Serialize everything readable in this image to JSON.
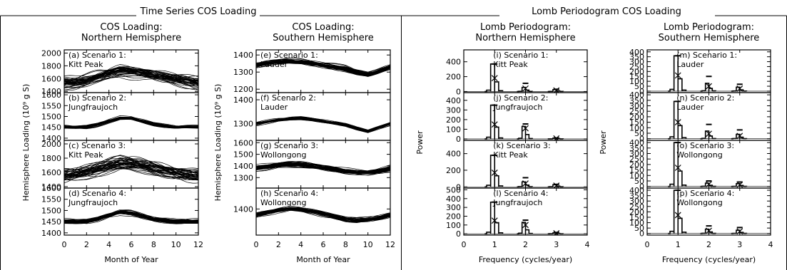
{
  "figure": {
    "left_title": "Time Series COS Loading",
    "right_title": "Lomb Periodogram COS Loading"
  },
  "chart_data": [
    {
      "type": "line",
      "column_title": [
        "COS Loading:",
        "Northern Hemisphere"
      ],
      "xlabel": "Month of Year",
      "ylabel": "Hemisphere Loading (10⁹ g S)",
      "xlim": [
        0,
        12
      ],
      "xticks": [
        "0",
        "2",
        "4",
        "6",
        "8",
        "10",
        "12"
      ],
      "panels": [
        {
          "label": [
            "(a) Scenario 1:",
            "Kitt Peak"
          ],
          "ylim": [
            1380,
            2050
          ],
          "yticks": [
            1400,
            1600,
            1800,
            2000
          ],
          "mean": [
            1520,
            1530,
            1560,
            1620,
            1670,
            1715,
            1700,
            1680,
            1640,
            1610,
            1575,
            1545,
            1520
          ],
          "spread": 90,
          "n_curves": 40
        },
        {
          "label": [
            "(b) Scenario 2:",
            "Jungfraujoch"
          ],
          "ylim": [
            1390,
            1610
          ],
          "yticks": [
            1400,
            1450,
            1500,
            1550,
            1600
          ],
          "mean": [
            1452,
            1450,
            1452,
            1462,
            1478,
            1492,
            1490,
            1476,
            1462,
            1455,
            1450,
            1452,
            1452
          ],
          "spread": 8,
          "n_curves": 40
        },
        {
          "label": [
            "(c) Scenario 3:",
            "Kitt Peak"
          ],
          "ylim": [
            1380,
            2050
          ],
          "yticks": [
            1400,
            1600,
            1800,
            2000
          ],
          "mean": [
            1540,
            1555,
            1590,
            1640,
            1690,
            1725,
            1710,
            1680,
            1650,
            1620,
            1590,
            1560,
            1540
          ],
          "spread": 95,
          "n_curves": 40
        },
        {
          "label": [
            "(d) Scenario 4:",
            "Jungfraujoch"
          ],
          "ylim": [
            1390,
            1600
          ],
          "yticks": [
            1400,
            1450,
            1500,
            1550,
            1600
          ],
          "mean": [
            1452,
            1450,
            1452,
            1462,
            1478,
            1492,
            1490,
            1476,
            1462,
            1455,
            1450,
            1452,
            1452
          ],
          "spread": 10,
          "n_curves": 40
        }
      ]
    },
    {
      "type": "line",
      "column_title": [
        "COS Loading:",
        "Southern Hemisphere"
      ],
      "xlabel": "Month of Year",
      "ylabel": "Hemisphere Loading (10⁹ g S)",
      "xlim": [
        0,
        12
      ],
      "xticks": [
        "0",
        "2",
        "4",
        "6",
        "8",
        "10",
        "12"
      ],
      "panels": [
        {
          "label": [
            "(e) Scenario 1:",
            "Lauder"
          ],
          "ylim": [
            1180,
            1430
          ],
          "yticks": [
            1200,
            1300,
            1400
          ],
          "mean": [
            1340,
            1355,
            1362,
            1365,
            1362,
            1352,
            1340,
            1330,
            1320,
            1300,
            1285,
            1305,
            1330
          ],
          "spread": 15,
          "n_curves": 40
        },
        {
          "label": [
            "(f) Scenario 2:",
            "Lauder"
          ],
          "ylim": [
            1230,
            1430
          ],
          "yticks": [
            1300,
            1400
          ],
          "mean": [
            1300,
            1308,
            1315,
            1320,
            1322,
            1318,
            1310,
            1302,
            1295,
            1280,
            1268,
            1285,
            1300
          ],
          "spread": 6,
          "n_curves": 40
        },
        {
          "label": [
            "(g) Scenario 3:",
            "Wollongong"
          ],
          "ylim": [
            1210,
            1620
          ],
          "yticks": [
            1300,
            1400,
            1500,
            1600
          ],
          "mean": [
            1380,
            1395,
            1410,
            1415,
            1410,
            1400,
            1385,
            1370,
            1355,
            1345,
            1342,
            1355,
            1375
          ],
          "spread": 22,
          "n_curves": 40
        },
        {
          "label": [
            "(h) Scenario 4:",
            "Wollongong"
          ],
          "ylim": [
            1300,
            1480
          ],
          "yticks": [
            1400
          ],
          "mean": [
            1375,
            1385,
            1395,
            1400,
            1397,
            1390,
            1380,
            1370,
            1360,
            1355,
            1358,
            1365,
            1375
          ],
          "spread": 10,
          "n_curves": 40
        }
      ]
    },
    {
      "type": "bar",
      "column_title": [
        "Lomb Periodogram:",
        "Northern Hemisphere"
      ],
      "xlabel": "Frequency (cycles/year)",
      "ylabel": "Power",
      "xlim": [
        0,
        4
      ],
      "xticks": [
        "0",
        "1",
        "2",
        "3",
        "4"
      ],
      "panels": [
        {
          "label": [
            "(i) Scenario 1:",
            "Kitt Peak"
          ],
          "ylim": [
            -15,
            560
          ],
          "yticks": [
            0,
            200,
            400
          ],
          "peaks": [
            {
              "freq": 1,
              "power": 370,
              "mean": 180,
              "upper": 370
            },
            {
              "freq": 2,
              "power": 55,
              "mean": 40,
              "upper": 110
            },
            {
              "freq": 3,
              "power": 25,
              "mean": 15,
              "upper": 30
            }
          ]
        },
        {
          "label": [
            "(j) Scenario 2:",
            "Jungfraujoch"
          ],
          "ylim": [
            -15,
            480
          ],
          "yticks": [
            0,
            100,
            200,
            300,
            400
          ],
          "peaks": [
            {
              "freq": 1,
              "power": 350,
              "mean": 150,
              "upper": 350
            },
            {
              "freq": 2,
              "power": 130,
              "mean": 110,
              "upper": 155
            },
            {
              "freq": 3,
              "power": 8,
              "mean": 5,
              "upper": 10
            }
          ]
        },
        {
          "label": [
            "(k) Scenario 3:",
            "Kitt Peak"
          ],
          "ylim": [
            -15,
            560
          ],
          "yticks": [
            0,
            200,
            400
          ],
          "peaks": [
            {
              "freq": 1,
              "power": 380,
              "mean": 170,
              "upper": 380
            },
            {
              "freq": 2,
              "power": 60,
              "mean": 40,
              "upper": 110
            },
            {
              "freq": 3,
              "power": 25,
              "mean": 15,
              "upper": 30
            }
          ]
        },
        {
          "label": [
            "(l) Scenario 4:",
            "Jungfraujoch"
          ],
          "ylim": [
            -15,
            520
          ],
          "yticks": [
            0,
            100,
            200,
            300,
            400,
            500
          ],
          "peaks": [
            {
              "freq": 1,
              "power": 360,
              "mean": 150,
              "upper": 360
            },
            {
              "freq": 2,
              "power": 130,
              "mean": 100,
              "upper": 155
            },
            {
              "freq": 3,
              "power": 10,
              "mean": 6,
              "upper": 15
            }
          ]
        }
      ]
    },
    {
      "type": "bar",
      "column_title": [
        "Lomb Periodogram:",
        "Southern Hemisphere"
      ],
      "xlabel": "Frequency (cycles/year)",
      "ylabel": "Power",
      "xlim": [
        0,
        4
      ],
      "xticks": [
        "0",
        "1",
        "2",
        "3",
        "4"
      ],
      "panels": [
        {
          "label": [
            "(m) Scenario 1:",
            "Lauder"
          ],
          "ylim": [
            -15,
            420
          ],
          "yticks": [
            0,
            50,
            100,
            150,
            200,
            250,
            300,
            350,
            400
          ],
          "peaks": [
            {
              "freq": 1,
              "power": 360,
              "mean": 160,
              "upper": 360
            },
            {
              "freq": 2,
              "power": 80,
              "mean": 50,
              "upper": 150
            },
            {
              "freq": 3,
              "power": 40,
              "mean": 25,
              "upper": 70
            }
          ]
        },
        {
          "label": [
            "(n) Scenario 2:",
            "Lauder"
          ],
          "ylim": [
            -15,
            420
          ],
          "yticks": [
            0,
            50,
            100,
            150,
            200,
            250,
            300,
            350,
            400
          ],
          "peaks": [
            {
              "freq": 1,
              "power": 340,
              "mean": 150,
              "upper": 340
            },
            {
              "freq": 2,
              "power": 70,
              "mean": 45,
              "upper": 130
            },
            {
              "freq": 3,
              "power": 40,
              "mean": 25,
              "upper": 80
            }
          ]
        },
        {
          "label": [
            "(o) Scenario 3:",
            "Wollongong"
          ],
          "ylim": [
            -15,
            420
          ],
          "yticks": [
            0,
            50,
            100,
            150,
            200,
            250,
            300,
            350,
            400
          ],
          "peaks": [
            {
              "freq": 1,
              "power": 400,
              "mean": 170,
              "upper": 400
            },
            {
              "freq": 2,
              "power": 30,
              "mean": 20,
              "upper": 50
            },
            {
              "freq": 3,
              "power": 25,
              "mean": 15,
              "upper": 40
            }
          ]
        },
        {
          "label": [
            "(p) Scenario 4:",
            "Wollongong"
          ],
          "ylim": [
            -15,
            420
          ],
          "yticks": [
            0,
            50,
            100,
            150,
            200,
            250,
            300,
            350,
            400
          ],
          "peaks": [
            {
              "freq": 1,
              "power": 400,
              "mean": 170,
              "upper": 400
            },
            {
              "freq": 2,
              "power": 40,
              "mean": 25,
              "upper": 70
            },
            {
              "freq": 3,
              "power": 30,
              "mean": 20,
              "upper": 55
            }
          ]
        }
      ]
    }
  ]
}
